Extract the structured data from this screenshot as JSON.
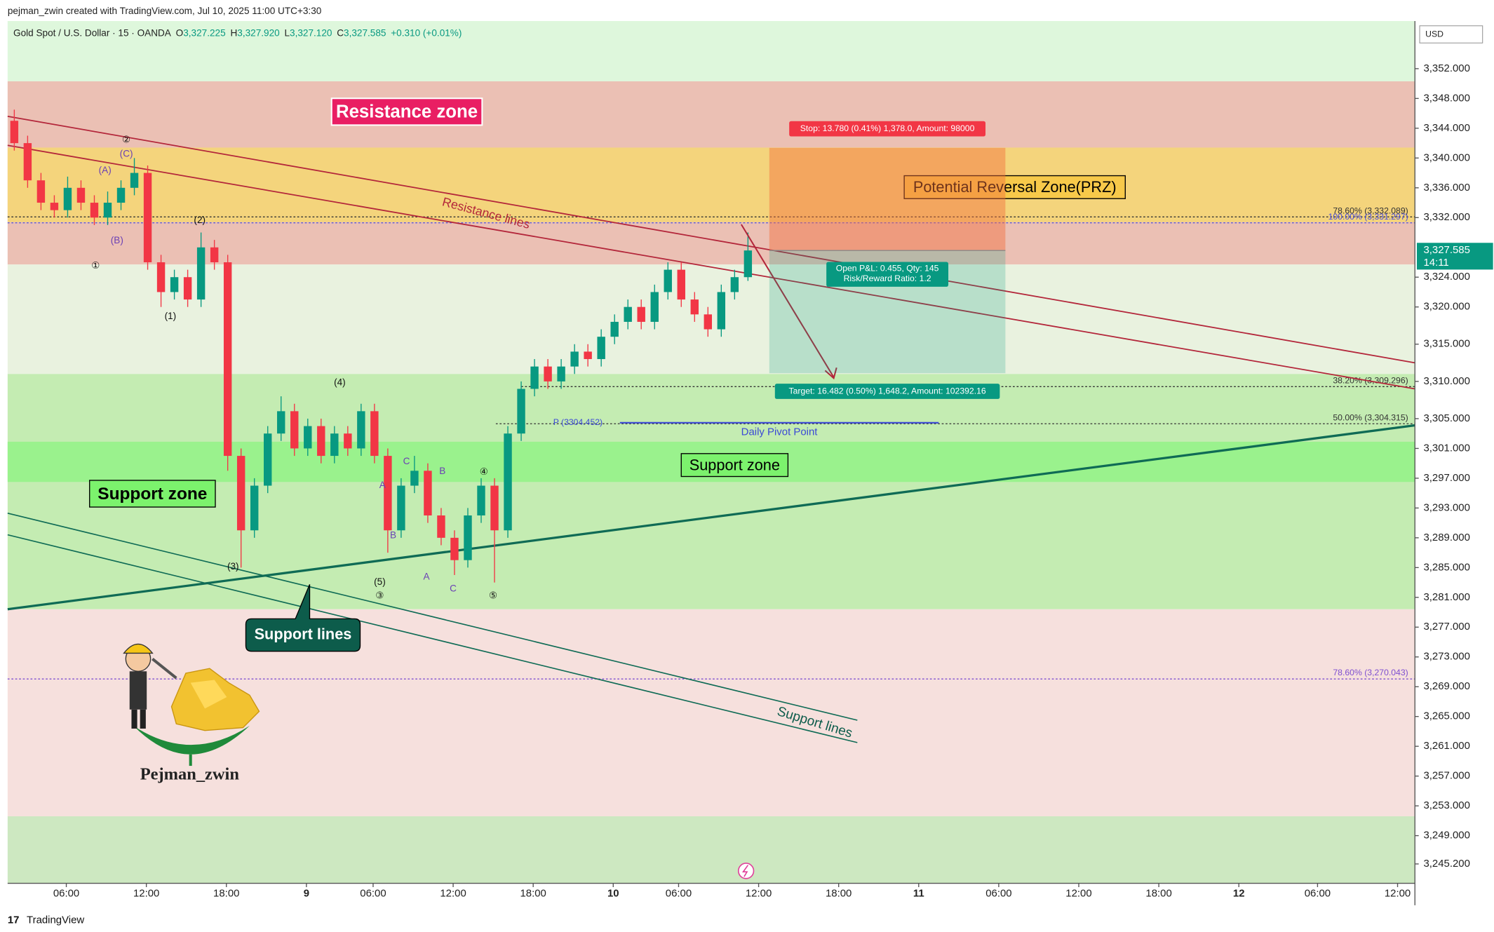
{
  "chart_data": {
    "type": "candlestick",
    "attribution": "pejman_zwin created with TradingView.com, Jul 10, 2025 11:00 UTC+3:30",
    "title": "Gold Spot / U.S. Dollar · 15 · OANDA",
    "ohlc": [
      {
        "label": "O",
        "value": "3,327.225"
      },
      {
        "label": "H",
        "value": "3,327.920"
      },
      {
        "label": "L",
        "value": "3,327.120"
      },
      {
        "label": "C",
        "value": "3,327.585"
      }
    ],
    "change": "+0.310 (+0.01%)",
    "currency": "USD",
    "last_price": {
      "value": 3327.585,
      "label": "3,327.585"
    },
    "countdown": "14:11",
    "footer": "TradingView",
    "watermark": "Pejman_zwin",
    "up_color": "#089981",
    "down_color": "#f23645",
    "grid": false,
    "xlim": [
      0,
      105.5
    ],
    "xticks": [
      {
        "value": 4.4,
        "label": "06:00"
      },
      {
        "value": 10.4,
        "label": "12:00"
      },
      {
        "value": 16.4,
        "label": "18:00"
      },
      {
        "value": 22.4,
        "label": "9"
      },
      {
        "value": 27.4,
        "label": "06:00"
      },
      {
        "value": 33.4,
        "label": "12:00"
      },
      {
        "value": 39.4,
        "label": "18:00"
      },
      {
        "value": 45.4,
        "label": "10"
      },
      {
        "value": 50.3,
        "label": "06:00"
      },
      {
        "value": 56.3,
        "label": "12:00"
      },
      {
        "value": 62.3,
        "label": "18:00"
      },
      {
        "value": 68.3,
        "label": "11"
      },
      {
        "value": 74.3,
        "label": "06:00"
      },
      {
        "value": 80.3,
        "label": "12:00"
      },
      {
        "value": 86.3,
        "label": "18:00"
      },
      {
        "value": 92.3,
        "label": "12"
      },
      {
        "value": 98.2,
        "label": "06:00"
      },
      {
        "value": 104.2,
        "label": "12:00"
      }
    ],
    "ylim": [
      3242.6,
      3358.4
    ],
    "yticks": [
      {
        "value": 3352,
        "label": "3,352.000"
      },
      {
        "value": 3348,
        "label": "3,348.000"
      },
      {
        "value": 3344,
        "label": "3,344.000"
      },
      {
        "value": 3340,
        "label": "3,340.000"
      },
      {
        "value": 3336,
        "label": "3,336.000"
      },
      {
        "value": 3332,
        "label": "3,332.000"
      },
      {
        "value": 3324,
        "label": "3,324.000"
      },
      {
        "value": 3320,
        "label": "3,320.000"
      },
      {
        "value": 3315,
        "label": "3,315.000"
      },
      {
        "value": 3310,
        "label": "3,310.000"
      },
      {
        "value": 3305,
        "label": "3,305.000"
      },
      {
        "value": 3301,
        "label": "3,301.000"
      },
      {
        "value": 3297,
        "label": "3,297.000"
      },
      {
        "value": 3293,
        "label": "3,293.000"
      },
      {
        "value": 3289,
        "label": "3,289.000"
      },
      {
        "value": 3285,
        "label": "3,285.000"
      },
      {
        "value": 3281,
        "label": "3,281.000"
      },
      {
        "value": 3277,
        "label": "3,277.000"
      },
      {
        "value": 3273,
        "label": "3,273.000"
      },
      {
        "value": 3269,
        "label": "3,269.000"
      },
      {
        "value": 3265,
        "label": "3,265.000"
      },
      {
        "value": 3261,
        "label": "3,261.000"
      },
      {
        "value": 3257,
        "label": "3,257.000"
      },
      {
        "value": 3253,
        "label": "3,253.000"
      },
      {
        "value": 3249,
        "label": "3,249.000"
      },
      {
        "value": 3245.2,
        "label": "3,245.200"
      }
    ],
    "x": [
      0.5,
      1.5,
      2.5,
      3.5,
      4.5,
      5.5,
      6.5,
      7.5,
      8.5,
      9.5,
      10.5,
      11.5,
      12.5,
      13.5,
      14.5,
      15.5,
      16.5,
      17.5,
      18.5,
      19.5,
      20.5,
      21.5,
      22.5,
      23.5,
      24.5,
      25.5,
      26.5,
      27.5,
      28.5,
      29.5,
      30.5,
      31.5,
      32.5,
      33.5,
      34.5,
      35.5,
      36.5,
      37.5,
      38.5,
      39.5,
      40.5,
      41.5,
      42.5,
      43.5,
      44.5,
      45.5,
      46.5,
      47.5,
      48.5,
      49.5,
      50.5,
      51.5,
      52.5,
      53.5,
      54.5,
      55.5
    ],
    "open": [
      3345,
      3342,
      3337,
      3334,
      3333,
      3336,
      3334,
      3332,
      3334,
      3336,
      3338,
      3326,
      3322,
      3324,
      3321,
      3328,
      3326,
      3300,
      3290,
      3296,
      3303,
      3306,
      3301,
      3304,
      3300,
      3303,
      3301,
      3306,
      3300,
      3290,
      3296,
      3298,
      3292,
      3289,
      3286,
      3292,
      3296,
      3290,
      3303,
      3309,
      3312,
      3310,
      3312,
      3314,
      3313,
      3316,
      3318,
      3320,
      3318,
      3322,
      3325,
      3321,
      3319,
      3317,
      3322,
      3324
    ],
    "high": [
      3346.5,
      3343,
      3338,
      3335,
      3337.5,
      3337,
      3335,
      3335.5,
      3337,
      3340,
      3339,
      3327,
      3325,
      3325,
      3330,
      3329,
      3327,
      3301,
      3297,
      3304,
      3308,
      3307,
      3305,
      3305,
      3304,
      3304,
      3307,
      3307,
      3301,
      3297,
      3300,
      3299,
      3293,
      3290,
      3293,
      3297,
      3297,
      3304,
      3310,
      3313,
      3313,
      3313,
      3315,
      3315,
      3317,
      3319,
      3321,
      3321,
      3323,
      3326,
      3326,
      3322,
      3320,
      3323,
      3325,
      3330
    ],
    "low": [
      3341,
      3336,
      3333,
      3332,
      3332,
      3333,
      3331,
      3331,
      3333,
      3335,
      3325,
      3320,
      3321,
      3320,
      3320,
      3325,
      3298,
      3285,
      3289,
      3295,
      3302,
      3300,
      3300,
      3299,
      3299,
      3300,
      3300,
      3299,
      3287,
      3289,
      3295,
      3291,
      3288,
      3284,
      3285,
      3291,
      3283,
      3289,
      3302,
      3308,
      3309,
      3309,
      3311,
      3312,
      3312,
      3315,
      3317,
      3317,
      3317,
      3321,
      3320,
      3318,
      3316,
      3316,
      3321,
      3323.5
    ],
    "close": [
      3342,
      3337,
      3334,
      3333,
      3336,
      3334,
      3332,
      3334,
      3336,
      3338,
      3326,
      3322,
      3324,
      3321,
      3328,
      3326,
      3300,
      3290,
      3296,
      3303,
      3306,
      3301,
      3304,
      3300,
      3303,
      3301,
      3306,
      3300,
      3290,
      3296,
      3298,
      3292,
      3289,
      3286,
      3292,
      3296,
      3290,
      3303,
      3309,
      3312,
      3310,
      3312,
      3314,
      3313,
      3316,
      3318,
      3320,
      3318,
      3322,
      3325,
      3321,
      3319,
      3317,
      3322,
      3324,
      3327.585
    ],
    "zones": [
      {
        "from": 3350.3,
        "to": 3358.4,
        "color": "#def7dc"
      },
      {
        "from": 3325.7,
        "to": 3350.3,
        "color": "#ebc0b4",
        "label": "Resistance zone"
      },
      {
        "from": 3331.4,
        "to": 3341.4,
        "color": "#f4d47c",
        "label": "Potential Reversal Zone(PRZ)"
      },
      {
        "from": 3311,
        "to": 3325.7,
        "color": "#e9f2df"
      },
      {
        "from": 3279.4,
        "to": 3311,
        "color": "#c4ecb2",
        "label": "Support zone"
      },
      {
        "from": 3296.5,
        "to": 3301.9,
        "color": "#9af28d",
        "label": "Support zone"
      },
      {
        "from": 3251.6,
        "to": 3279.4,
        "color": "#f6e0dd"
      },
      {
        "from": 3242.6,
        "to": 3251.6,
        "color": "#cde8c1"
      }
    ],
    "trend_lines": [
      {
        "x": [
          0,
          105.5
        ],
        "y": [
          3345.6,
          3312.5
        ],
        "color": "#b3263a",
        "width": 1.3,
        "label": "Resistance lines"
      },
      {
        "x": [
          0,
          105.5
        ],
        "y": [
          3341.7,
          3309.0
        ],
        "color": "#b3263a",
        "width": 1.3
      },
      {
        "x": [
          0,
          105.5
        ],
        "y": [
          3279.4,
          3304.1
        ],
        "color": "#0f6b55",
        "width": 2.4,
        "label": "Support lines"
      },
      {
        "x": [
          0,
          63.7
        ],
        "y": [
          3292.3,
          3264.5
        ],
        "color": "#0f6b55",
        "width": 1.2
      },
      {
        "x": [
          0,
          63.7
        ],
        "y": [
          3289.4,
          3261.5
        ],
        "color": "#0f6b55",
        "width": 1.2
      }
    ],
    "levels": [
      {
        "value": 3332.089,
        "label": "78.60% (3,332.089)",
        "color": "#333333",
        "start": 0
      },
      {
        "value": 3331.297,
        "label": "100.00% (3,331.297)",
        "color": "#4a4ee0",
        "start": 0
      },
      {
        "value": 3309.296,
        "label": "38.20% (3,309.296)",
        "color": "#333333",
        "start": 38.5
      },
      {
        "value": 3304.315,
        "label": "50.00% (3,304.315)",
        "color": "#333333",
        "start": 36.6
      },
      {
        "value": 3270.043,
        "label": "78.60% (3,270.043)",
        "color": "#7e4fd0",
        "start": 0
      }
    ],
    "pivot": {
      "value": 3304.452,
      "label": "P (3304.452)",
      "name": "Daily Pivot Point",
      "start": 45.9,
      "end": 69.8,
      "color": "#3b49d6"
    },
    "position": {
      "start": 57.1,
      "end": 74.8,
      "entry": 3327.585,
      "stop": 3341.365,
      "target": 3311.103,
      "stop_label": "Stop: 13.780 (0.41%) 1,378.0, Amount: 98000",
      "target_label": "Target: 16.482 (0.50%) 1,648.2, Amount: 102392.16",
      "pnl_label": "Open P&L: 0.455, Qty: 145",
      "ratio_label": "Risk/Reward Ratio: 1.2"
    },
    "waves": [
      {
        "text": "①",
        "x": 6.6,
        "price": 3325.5,
        "color": "#111111"
      },
      {
        "text": "②",
        "x": 8.9,
        "price": 3342.4,
        "color": "#111111"
      },
      {
        "text": "(C)",
        "x": 8.9,
        "price": 3340.5,
        "color": "#6a3fb5"
      },
      {
        "text": "(A)",
        "x": 7.3,
        "price": 3338.3,
        "color": "#6a3fb5"
      },
      {
        "text": "(B)",
        "x": 8.2,
        "price": 3328.9,
        "color": "#6a3fb5"
      },
      {
        "text": "(2)",
        "x": 14.4,
        "price": 3331.6,
        "color": "#111111"
      },
      {
        "text": "(1)",
        "x": 12.2,
        "price": 3318.7,
        "color": "#111111"
      },
      {
        "text": "(3)",
        "x": 16.9,
        "price": 3285.1,
        "color": "#111111"
      },
      {
        "text": "(4)",
        "x": 24.9,
        "price": 3309.8,
        "color": "#111111"
      },
      {
        "text": "(5)",
        "x": 27.9,
        "price": 3283.0,
        "color": "#111111"
      },
      {
        "text": "③",
        "x": 27.9,
        "price": 3281.2,
        "color": "#111111"
      },
      {
        "text": "A",
        "x": 28.1,
        "price": 3296,
        "color": "#6a3fb5"
      },
      {
        "text": "B",
        "x": 28.9,
        "price": 3289.3,
        "color": "#6a3fb5"
      },
      {
        "text": "C",
        "x": 29.9,
        "price": 3299.2,
        "color": "#6a3fb5"
      },
      {
        "text": "A",
        "x": 31.4,
        "price": 3283.7,
        "color": "#6a3fb5"
      },
      {
        "text": "B",
        "x": 32.6,
        "price": 3297.9,
        "color": "#6a3fb5"
      },
      {
        "text": "C",
        "x": 33.4,
        "price": 3282.1,
        "color": "#6a3fb5"
      },
      {
        "text": "④",
        "x": 35.7,
        "price": 3297.8,
        "color": "#111111"
      },
      {
        "text": "⑤",
        "x": 36.4,
        "price": 3281.2,
        "color": "#111111"
      }
    ]
  }
}
